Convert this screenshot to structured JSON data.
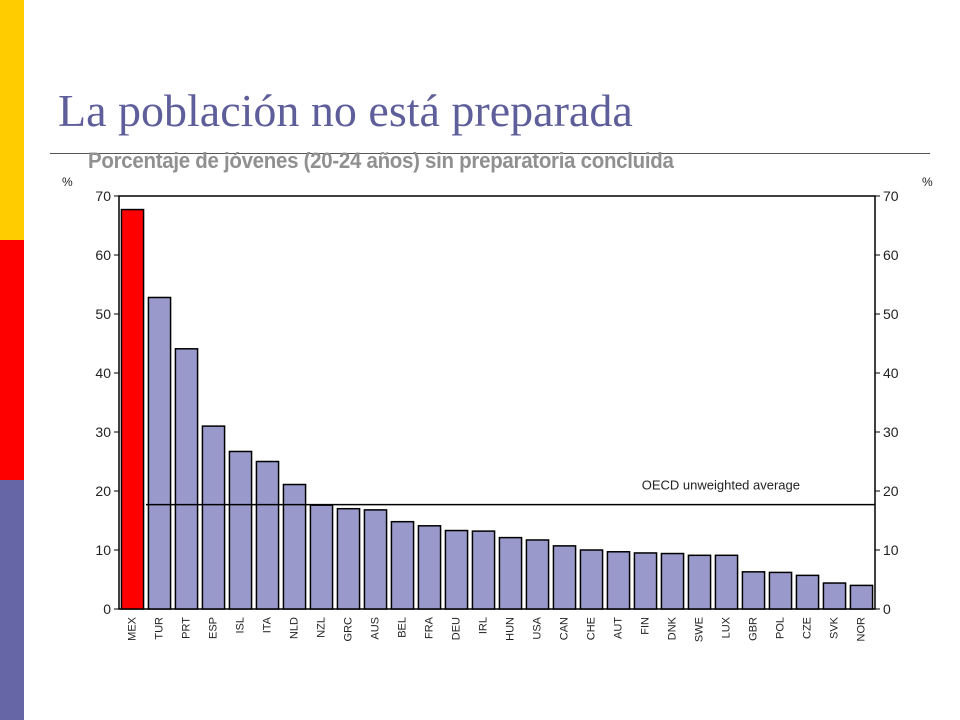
{
  "slide": {
    "title": "La población no está preparada",
    "accent_colors": [
      "#ffcc00",
      "#ff0000",
      "#6666a6"
    ]
  },
  "chart_data": {
    "type": "bar",
    "title": "Porcentaje de jóvenes (20-24 años) sin preparatoria concluida",
    "ylabel_left": "%",
    "ylabel_right": "%",
    "ylim": [
      0,
      70
    ],
    "yticks": [
      0,
      10,
      20,
      30,
      40,
      50,
      60,
      70
    ],
    "categories": [
      "MEX",
      "TUR",
      "PRT",
      "ESP",
      "ISL",
      "ITA",
      "NLD",
      "NZL",
      "GRC",
      "AUS",
      "BEL",
      "FRA",
      "DEU",
      "IRL",
      "HUN",
      "USA",
      "CAN",
      "CHE",
      "AUT",
      "FIN",
      "DNK",
      "SWE",
      "LUX",
      "GBR",
      "POL",
      "CZE",
      "SVK",
      "NOR"
    ],
    "values": [
      67.7,
      52.8,
      44.1,
      31.0,
      26.7,
      25.0,
      21.1,
      17.6,
      17.0,
      16.8,
      14.8,
      14.1,
      13.3,
      13.2,
      12.1,
      11.7,
      10.7,
      10.0,
      9.7,
      9.5,
      9.4,
      9.1,
      9.1,
      6.3,
      6.2,
      5.7,
      4.4,
      4.0
    ],
    "highlight_category": "MEX",
    "highlight_color": "#ff0000",
    "bar_color": "#9999cc",
    "reference_line": {
      "label": "OECD unweighted average",
      "value": 17.7
    },
    "grid": "dotted",
    "legend": "none"
  }
}
